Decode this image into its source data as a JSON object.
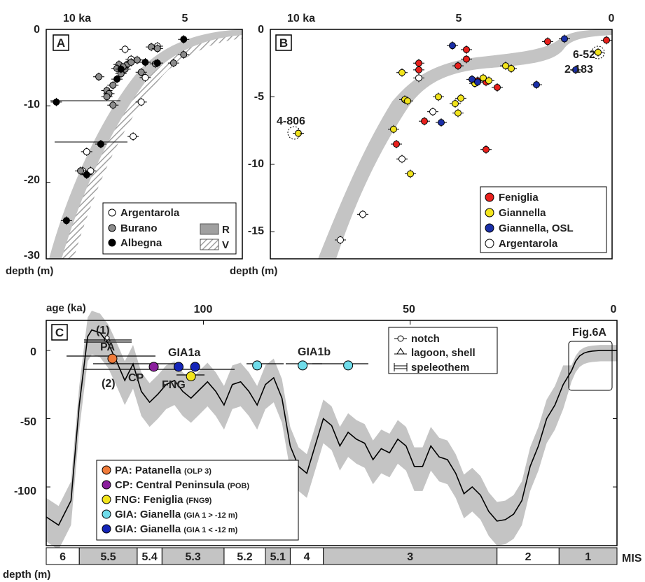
{
  "colors": {
    "feniglia": "#e8201c",
    "giannella": "#f2e41c",
    "giannella_osl": "#1a2fa8",
    "argentarola": "#ffffff",
    "burano": "#8c8c8c",
    "albegna": "#000000",
    "band": "#c4c4c4",
    "patanella": "#f07b3a",
    "central_peninsula": "#8a1e9c",
    "gia_upper": "#6fdcea",
    "gia_lower": "#1424b8"
  },
  "chart_data": [
    {
      "panel": "A",
      "type": "scatter",
      "xlabel": "ka",
      "ylabel": "depth (m)",
      "x_tick_labels": [
        "10 ka",
        "5"
      ],
      "y_tick_labels": [
        "0",
        "-10",
        "-20",
        "-30"
      ],
      "xlim": [
        11.5,
        1.8
      ],
      "ylim": [
        -30,
        0
      ],
      "legend": {
        "argentarola": "Argentarola",
        "burano": "Burano",
        "albegna": "Albegna",
        "r": "R",
        "v": "V"
      },
      "series": [
        {
          "name": "Argentarola",
          "points": [
            [
              9.5,
              -16
            ],
            [
              9.7,
              -18.5
            ],
            [
              9.3,
              -18.5
            ],
            [
              8.8,
              -15
            ],
            [
              7.2,
              -14
            ],
            [
              6.8,
              -9.5
            ],
            [
              7.6,
              -2.6
            ],
            [
              7.3,
              -3.9
            ],
            [
              6.6,
              -6.3
            ],
            [
              6.0,
              -2.2
            ]
          ]
        },
        {
          "name": "Burano",
          "points": [
            [
              9.8,
              -18.5
            ],
            [
              8.9,
              -6.2
            ],
            [
              8.5,
              -8
            ],
            [
              8.4,
              -8.4
            ],
            [
              8.5,
              -8.8
            ],
            [
              8.2,
              -9.9
            ],
            [
              8.2,
              -7.3
            ],
            [
              7.9,
              -4.6
            ],
            [
              8.0,
              -5.1
            ],
            [
              7.8,
              -5.8
            ],
            [
              7.6,
              -5.2
            ],
            [
              7.5,
              -4.6
            ],
            [
              7.7,
              -4.9
            ],
            [
              7.3,
              -4.3
            ],
            [
              7.0,
              -4.0
            ],
            [
              6.8,
              -5.6
            ],
            [
              6.3,
              -2.3
            ],
            [
              6.0,
              -2.5
            ],
            [
              6.1,
              -4.5
            ],
            [
              5.2,
              -4.4
            ],
            [
              4.7,
              -3.3
            ]
          ]
        },
        {
          "name": "Albegna",
          "points": [
            [
              11.0,
              -9.5
            ],
            [
              10.5,
              -25
            ],
            [
              9.5,
              -19
            ],
            [
              8.8,
              -15
            ],
            [
              8.0,
              -6.5
            ],
            [
              7.8,
              -5.2
            ],
            [
              6.6,
              -4.3
            ],
            [
              6.0,
              -4.4
            ],
            [
              4.7,
              -1.3
            ]
          ]
        }
      ]
    },
    {
      "panel": "B",
      "type": "scatter",
      "xlabel": "ka",
      "ylabel": "depth (m)",
      "x_tick_labels": [
        "10 ka",
        "5",
        "0"
      ],
      "y_tick_labels": [
        "0",
        "-5",
        "-10",
        "-15"
      ],
      "xlim": [
        12.2,
        0
      ],
      "ylim": [
        -17,
        0
      ],
      "annotations": [
        "4-806",
        "6-52",
        "2-183"
      ],
      "legend": {
        "feniglia": "Feniglia",
        "giannella": "Giannella",
        "giannella_osl": "Giannella, OSL",
        "argentarola": "Argentarola"
      },
      "series": [
        {
          "name": "Feniglia",
          "points": [
            [
              7.7,
              -8.5
            ],
            [
              6.9,
              -2.5
            ],
            [
              6.9,
              -3.0
            ],
            [
              6.7,
              -6.8
            ],
            [
              5.5,
              -2.7
            ],
            [
              5.2,
              -1.5
            ],
            [
              5.2,
              -2.2
            ],
            [
              4.8,
              -3.8
            ],
            [
              4.5,
              -3.9
            ],
            [
              4.5,
              -8.9
            ],
            [
              4.1,
              -4.3
            ],
            [
              2.3,
              -0.9
            ],
            [
              0.2,
              -0.8
            ]
          ]
        },
        {
          "name": "Giannella",
          "points": [
            [
              7.8,
              -7.4
            ],
            [
              7.5,
              -3.2
            ],
            [
              7.4,
              -5.2
            ],
            [
              7.3,
              -5.3
            ],
            [
              7.2,
              -10.7
            ],
            [
              6.2,
              -5.0
            ],
            [
              5.6,
              -5.5
            ],
            [
              5.5,
              -6.2
            ],
            [
              5.4,
              -5.1
            ],
            [
              4.9,
              -4.0
            ],
            [
              4.6,
              -3.6
            ],
            [
              4.4,
              -3.8
            ],
            [
              3.8,
              -2.7
            ],
            [
              3.6,
              -2.9
            ],
            [
              0.5,
              -1.7
            ],
            [
              11.2,
              -7.7
            ]
          ]
        },
        {
          "name": "Giannella, OSL",
          "points": [
            [
              5.7,
              -1.2
            ],
            [
              5.0,
              -3.7
            ],
            [
              4.8,
              -3.9
            ],
            [
              6.1,
              -6.9
            ],
            [
              2.7,
              -4.1
            ],
            [
              1.7,
              -0.7
            ],
            [
              1.3,
              -3.0
            ]
          ]
        },
        {
          "name": "Argentarola",
          "points": [
            [
              9.7,
              -15.6
            ],
            [
              8.9,
              -13.7
            ],
            [
              7.5,
              -9.6
            ],
            [
              6.9,
              -3.6
            ],
            [
              6.4,
              -6.1
            ]
          ]
        }
      ]
    },
    {
      "panel": "C",
      "type": "line",
      "xlabel": "age (ka)",
      "ylabel": "depth (m)",
      "x_tick_labels": [
        "100",
        "50",
        "0"
      ],
      "y_tick_labels": [
        "0",
        "-50",
        "-100"
      ],
      "xlim": [
        138,
        0
      ],
      "ylim": [
        -143,
        22
      ],
      "annotations": [
        "(1)",
        "(2)",
        "PA",
        "CP",
        "FNG",
        "GIA1a",
        "GIA1b",
        "Fig.6A"
      ],
      "legend_markers": {
        "notch": "notch",
        "lagoon": "lagoon, shell",
        "speleothem": "speleothem"
      },
      "legend_sites": [
        {
          "key": "pa",
          "label": "PA: Patanella",
          "sub": "(OLP 3)"
        },
        {
          "key": "cp",
          "label": "CP: Central Peninsula",
          "sub": "(POB)"
        },
        {
          "key": "fng",
          "label": "FNG: Feniglia",
          "sub": "(FNG9)"
        },
        {
          "key": "gia_upper",
          "label": "GIA: Gianella",
          "sub": "(GIA 1 > -12 m)"
        },
        {
          "key": "gia_lower",
          "label": "GIA: Gianella",
          "sub": "(GIA 1 < -12 m)"
        }
      ],
      "mis_label": "MIS",
      "mis_stages": [
        {
          "label": "6",
          "start": 138,
          "end": 130,
          "shaded": false
        },
        {
          "label": "5.5",
          "start": 130,
          "end": 116,
          "shaded": true
        },
        {
          "label": "5.4",
          "start": 116,
          "end": 110,
          "shaded": false
        },
        {
          "label": "5.3",
          "start": 110,
          "end": 95,
          "shaded": true
        },
        {
          "label": "5.2",
          "start": 95,
          "end": 85,
          "shaded": false
        },
        {
          "label": "5.1",
          "start": 85,
          "end": 79,
          "shaded": true
        },
        {
          "label": "4",
          "start": 79,
          "end": 71,
          "shaded": false
        },
        {
          "label": "3",
          "start": 71,
          "end": 29,
          "shaded": true
        },
        {
          "label": "2",
          "start": 29,
          "end": 14,
          "shaded": false
        },
        {
          "label": "1",
          "start": 14,
          "end": 0,
          "shaded": true
        }
      ],
      "sea_level_curve": {
        "age": [
          138,
          135,
          132,
          130,
          128,
          127,
          125,
          123,
          121,
          119,
          117,
          115,
          113,
          111,
          109,
          107,
          105,
          103,
          101,
          99,
          97,
          95,
          93,
          91,
          89,
          87,
          85,
          83,
          81,
          79,
          77,
          75,
          73,
          71,
          69,
          67,
          65,
          63,
          61,
          59,
          57,
          55,
          53,
          51,
          49,
          47,
          45,
          43,
          41,
          39,
          37,
          35,
          33,
          31,
          29,
          27,
          25,
          23,
          21,
          19,
          17,
          15,
          13,
          11,
          10,
          9,
          8,
          7,
          6,
          4,
          2,
          0
        ],
        "depth": [
          -122,
          -128,
          -110,
          -40,
          10,
          15,
          13,
          5,
          -8,
          -22,
          -10,
          -30,
          -38,
          -32,
          -25,
          -22,
          -30,
          -35,
          -29,
          -23,
          -30,
          -40,
          -25,
          -23,
          -30,
          -40,
          -25,
          -20,
          -35,
          -70,
          -85,
          -90,
          -70,
          -50,
          -55,
          -70,
          -60,
          -65,
          -68,
          -80,
          -72,
          -75,
          -65,
          -70,
          -85,
          -85,
          -70,
          -78,
          -80,
          -90,
          -105,
          -100,
          -106,
          -118,
          -125,
          -124,
          -120,
          -110,
          -85,
          -70,
          -50,
          -40,
          -25,
          -15,
          -8,
          -4,
          -2,
          -1,
          -0.5,
          0,
          0,
          0
        ]
      },
      "points": [
        {
          "site": "pa",
          "age": 122,
          "depth": -6
        },
        {
          "site": "cp",
          "age": 112,
          "depth": -12
        },
        {
          "site": "gia_lower",
          "age": 106,
          "depth": -12
        },
        {
          "site": "gia_lower",
          "age": 102,
          "depth": -12
        },
        {
          "site": "fng",
          "age": 103,
          "depth": -19
        },
        {
          "site": "gia_upper",
          "age": 87,
          "depth": -11
        },
        {
          "site": "gia_upper",
          "age": 76,
          "depth": -11
        },
        {
          "site": "gia_upper",
          "age": 65,
          "depth": -11
        }
      ]
    }
  ]
}
